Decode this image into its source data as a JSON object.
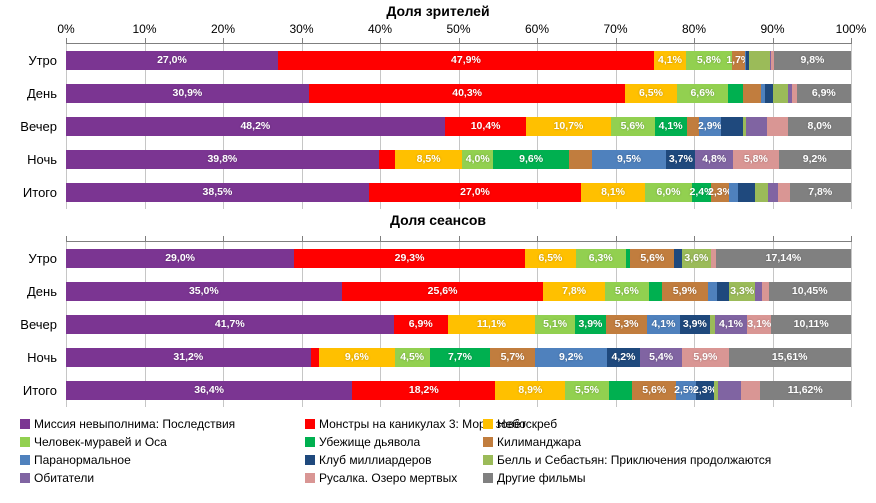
{
  "colors": {
    "mission": "#7B3592",
    "monsters": "#FF0000",
    "skyscraper": "#FFC000",
    "antman": "#92D050",
    "devils": "#00B050",
    "kilimanjaro": "#C17D3E",
    "paranormal": "#4F81BD",
    "billionaires": "#1F497D",
    "belle": "#9BBB59",
    "inhabitants": "#8064A2",
    "mermaid": "#D99694",
    "others": "#808080",
    "axis_line": "#7F7F7F",
    "grid_line": "#C6C6C6"
  },
  "legend": {
    "items": [
      {
        "label": "Миссия невыполнима: Последствия",
        "color": "#7B3592"
      },
      {
        "label": "Монстры на каникулах 3: Море зовёт",
        "color": "#FF0000"
      },
      {
        "label": "Небоскреб",
        "color": "#FFC000"
      },
      {
        "label": "Человек-муравей и Оса",
        "color": "#92D050"
      },
      {
        "label": "Убежище дьявола",
        "color": "#00B050"
      },
      {
        "label": "Килиманджара",
        "color": "#C17D3E"
      },
      {
        "label": "Паранормальное",
        "color": "#4F81BD"
      },
      {
        "label": "Клуб миллиардеров",
        "color": "#1F497D"
      },
      {
        "label": "Белль и Себастьян: Приключения продолжаются",
        "color": "#9BBB59"
      },
      {
        "label": "Обитатели",
        "color": "#8064A2"
      },
      {
        "label": "Русалка. Озеро мертвых",
        "color": "#D99694"
      },
      {
        "label": "Другие фильмы",
        "color": "#808080"
      }
    ]
  },
  "chart_data": [
    {
      "type": "bar",
      "subtype": "horizontal-stacked",
      "title": "Доля зрителей",
      "xlim": [
        0,
        100
      ],
      "x_ticks": [
        "0%",
        "10%",
        "20%",
        "30%",
        "40%",
        "50%",
        "60%",
        "70%",
        "80%",
        "90%",
        "100%"
      ],
      "x_tick_labels_visible": true,
      "grid": true,
      "categories": [
        "Утро",
        "День",
        "Вечер",
        "Ночь",
        "Итого"
      ],
      "series": [
        {
          "name": "Миссия невыполнима: Последствия",
          "color": "#7B3592",
          "values": [
            27.0,
            30.9,
            48.2,
            39.8,
            38.5
          ],
          "labels": [
            "27,0%",
            "30,9%",
            "48,2%",
            "39,8%",
            "38,5%"
          ]
        },
        {
          "name": "Монстры на каникулах 3: Море зовёт",
          "color": "#FF0000",
          "values": [
            47.9,
            40.3,
            10.4,
            2.1,
            27.0
          ],
          "labels": [
            "47,9%",
            "40,3%",
            "10,4%",
            null,
            "27,0%"
          ]
        },
        {
          "name": "Небоскреб",
          "color": "#FFC000",
          "values": [
            4.1,
            6.5,
            10.7,
            8.5,
            8.1
          ],
          "labels": [
            "4,1%",
            "6,5%",
            "10,7%",
            "8,5%",
            "8,1%"
          ]
        },
        {
          "name": "Человек-муравей и Оса",
          "color": "#92D050",
          "values": [
            5.8,
            6.6,
            5.6,
            4.0,
            6.0
          ],
          "labels": [
            "5,8%",
            "6,6%",
            "5,6%",
            "4,0%",
            "6,0%"
          ]
        },
        {
          "name": "Убежище дьявола",
          "color": "#00B050",
          "values": [
            0,
            1.8,
            4.1,
            9.6,
            2.4
          ],
          "labels": [
            null,
            null,
            "4,1%",
            "9,6%",
            "2,4%"
          ]
        },
        {
          "name": "Килиманджара",
          "color": "#C17D3E",
          "values": [
            1.7,
            2.3,
            1.5,
            2.9,
            2.3
          ],
          "labels": [
            "1,7%",
            null,
            null,
            null,
            "2,3%"
          ]
        },
        {
          "name": "Паранормальное",
          "color": "#4F81BD",
          "values": [
            0.1,
            0.6,
            2.9,
            9.5,
            1.2
          ],
          "labels": [
            null,
            null,
            "2,9%",
            "9,5%",
            null
          ]
        },
        {
          "name": "Клуб миллиардеров",
          "color": "#1F497D",
          "values": [
            0.4,
            1.0,
            2.7,
            3.7,
            2.1
          ],
          "labels": [
            null,
            null,
            null,
            "3,7%",
            null
          ]
        },
        {
          "name": "Белль и Себастьян: Приключения продолжаются",
          "color": "#9BBB59",
          "values": [
            2.7,
            1.9,
            0.4,
            0,
            1.7
          ],
          "labels": [
            null,
            null,
            null,
            null,
            null
          ]
        },
        {
          "name": "Обитатели",
          "color": "#8064A2",
          "values": [
            0.1,
            0.5,
            2.7,
            4.8,
            1.2
          ],
          "labels": [
            null,
            null,
            null,
            "4,8%",
            null
          ]
        },
        {
          "name": "Русалка. Озеро мертвых",
          "color": "#D99694",
          "values": [
            0.4,
            0.6,
            2.7,
            5.8,
            1.5
          ],
          "labels": [
            null,
            null,
            null,
            "5,8%",
            null
          ]
        },
        {
          "name": "Другие фильмы",
          "color": "#808080",
          "values": [
            9.8,
            6.9,
            8.0,
            9.2,
            7.8
          ],
          "labels": [
            "9,8%",
            "6,9%",
            "8,0%",
            "9,2%",
            "7,8%"
          ]
        }
      ]
    },
    {
      "type": "bar",
      "subtype": "horizontal-stacked",
      "title": "Доля сеансов",
      "xlim": [
        0,
        100
      ],
      "x_ticks": [
        "0%",
        "10%",
        "20%",
        "30%",
        "40%",
        "50%",
        "60%",
        "70%",
        "80%",
        "90%",
        "100%"
      ],
      "x_tick_labels_visible": false,
      "grid": true,
      "categories": [
        "Утро",
        "День",
        "Вечер",
        "Ночь",
        "Итого"
      ],
      "series": [
        {
          "name": "Миссия невыполнима: Последствия",
          "color": "#7B3592",
          "values": [
            29.0,
            35.0,
            41.7,
            31.2,
            36.4
          ],
          "labels": [
            "29,0%",
            "35,0%",
            "41,7%",
            "31,2%",
            "36,4%"
          ]
        },
        {
          "name": "Монстры на каникулах 3: Море зовёт",
          "color": "#FF0000",
          "values": [
            29.3,
            25.6,
            6.9,
            1.1,
            18.2
          ],
          "labels": [
            "29,3%",
            "25,6%",
            "6,9%",
            null,
            "18,2%"
          ]
        },
        {
          "name": "Небоскреб",
          "color": "#FFC000",
          "values": [
            6.5,
            7.8,
            11.1,
            9.6,
            8.9
          ],
          "labels": [
            "6,5%",
            "7,8%",
            "11,1%",
            "9,6%",
            "8,9%"
          ]
        },
        {
          "name": "Человек-муравей и Оса",
          "color": "#92D050",
          "values": [
            6.3,
            5.6,
            5.1,
            4.5,
            5.5
          ],
          "labels": [
            "6,3%",
            "5,6%",
            "5,1%",
            "4,5%",
            "5,5%"
          ]
        },
        {
          "name": "Убежище дьявола",
          "color": "#00B050",
          "values": [
            0.6,
            1.6,
            3.9,
            7.7,
            3.0
          ],
          "labels": [
            null,
            null,
            "3,9%",
            "7,7%",
            null
          ]
        },
        {
          "name": "Килиманджара",
          "color": "#C17D3E",
          "values": [
            5.6,
            5.9,
            5.3,
            5.7,
            5.6
          ],
          "labels": [
            "5,6%",
            "5,9%",
            "5,3%",
            "5,7%",
            "5,6%"
          ]
        },
        {
          "name": "Паранормальное",
          "color": "#4F81BD",
          "values": [
            0,
            1.2,
            4.1,
            9.2,
            2.5
          ],
          "labels": [
            null,
            null,
            "4,1%",
            "9,2%",
            "2,5%"
          ]
        },
        {
          "name": "Клуб миллиардеров",
          "color": "#1F497D",
          "values": [
            1.0,
            1.5,
            3.9,
            4.2,
            2.3
          ],
          "labels": [
            null,
            null,
            "3,9%",
            "4,2%",
            "2,3%"
          ]
        },
        {
          "name": "Белль и Себастьян: Приключения продолжаются",
          "color": "#9BBB59",
          "values": [
            3.6,
            3.3,
            0.6,
            0,
            0.5
          ],
          "labels": [
            "3,6%",
            "3,3%",
            null,
            null,
            null
          ]
        },
        {
          "name": "Обитатели",
          "color": "#8064A2",
          "values": [
            0,
            0.8,
            4.1,
            5.4,
            3.0
          ],
          "labels": [
            null,
            null,
            "4,1%",
            "5,4%",
            null
          ]
        },
        {
          "name": "Русалка. Озеро мертвых",
          "color": "#D99694",
          "values": [
            0.7,
            0.9,
            3.1,
            5.9,
            2.3
          ],
          "labels": [
            null,
            null,
            "3,1%",
            "5,9%",
            null
          ]
        },
        {
          "name": "Другие фильмы",
          "color": "#808080",
          "values": [
            17.14,
            10.45,
            10.11,
            15.61,
            11.62
          ],
          "labels": [
            "17,14%",
            "10,45%",
            "10,11%",
            "15,61%",
            "11,62%"
          ]
        }
      ]
    }
  ]
}
